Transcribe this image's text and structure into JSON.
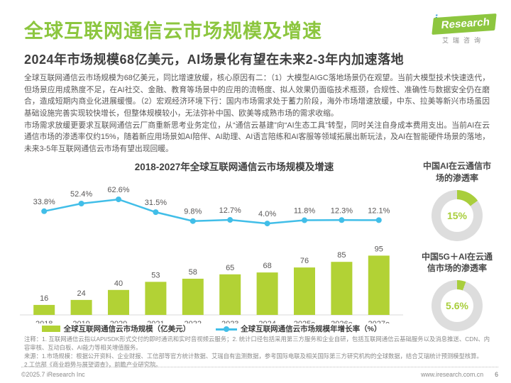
{
  "header": {
    "title": "全球互联网通信云市场规模及增速",
    "logo": {
      "i": "i",
      "research": "Research",
      "cn_name": "艾瑞咨询"
    },
    "subtitle": "2024年市场规模68亿美元，AI场景化有望在未来2-3年内加速落地"
  },
  "paragraphs": {
    "p1": "全球互联网通信云市场规模为68亿美元，同比增速放缓，核心原因有二：（1）大模型AIGC落地场景仍在观望。当前大模型技术快速迭代，但场景应用成熟度不足，在AI社交、金融、教育等场景中的应用的流畅度、拟人效果仍面临技术瓶颈，合规性、准确性与数据安全仍在磨合，造成短期内商业化进展缓慢。（2）宏观经济环境下行：国内市场需求处于蓄力阶段，海外市场增速放缓，中东、拉美等新兴市场虽因基础设施完善实现较快增长，但整体规模较小，无法弥补中国、欧美等成熟市场的需求收缩。",
    "p2": "市场需求放缓更要求互联网通信云厂商重新思考业务定位，从“通信云基建”向“AI生态工具”转型，同时关注自身成本费用支出。当前AI在云通信市场的渗透率仅约15%，随着新应用场景如AI陪伴、AI助理、AI语言陪练和AI客服等领域拓展出新玩法，及AI在智能硬件场景的落地，未来3-5年互联网通信云市场有望出现回暖。"
  },
  "chart_data": {
    "type": "bar+line",
    "title": "2018-2027年全球互联网通信云市场规模及增速",
    "categories": [
      "2018",
      "2019",
      "2020",
      "2021",
      "2022",
      "2023",
      "2024",
      "2025e",
      "2026e",
      "2027e"
    ],
    "series": [
      {
        "name": "全球互联网通信云市场规模（亿美元）",
        "type": "bar",
        "color": "#B2D235",
        "values": [
          16,
          24,
          40,
          53,
          58,
          65,
          68,
          76,
          85,
          95
        ]
      },
      {
        "name": "全球互联网通信云市场规模年增长率（%）",
        "type": "line",
        "color": "#41BEE8",
        "values": [
          33.8,
          52.4,
          62.6,
          31.5,
          9.8,
          12.7,
          4.0,
          11.8,
          12.3,
          12.1
        ]
      }
    ],
    "legend_position": "bottom",
    "grid": false,
    "value_label_color": "#595757",
    "axis_color": "#d9d9d9"
  },
  "side_charts": [
    {
      "type": "donut",
      "title": "中国AI在云通信市\n场的渗透率",
      "value": 15,
      "label": "15%",
      "color": "#A9CE3C",
      "track_color": "#dddddd"
    },
    {
      "type": "donut",
      "title": "中国5G＋AI在云通\n信市场的渗透率",
      "value": 5.6,
      "label": "5.6%",
      "color": "#A9CE3C",
      "track_color": "#dddddd"
    }
  ],
  "notes": {
    "line1": "注释：1. 互联网通信云指以API/SDK形式交付的即时通讯和实时音视频云服务；2. 统计口径包括采用第三方服务和企业自研，包括互联网通信云基础服务以及消息推送、CDN、内容审核、互动白板、AI能力等相关增值服务。",
    "line2": "来源：1.市场规模：根据公开资料、企业财报、工信部等官方统计数据、艾瑞自有监测数据，参考国际电联及相关国际第三方研究机构的全球数据，结合艾瑞统计预测模型核算。",
    "line3": "2.工信部《商业趋势与展望调查》，前瞻产业研究院。"
  },
  "footer": {
    "copyright": "©2025.7 iResearch Inc",
    "website": "www.iresearch.com.cn",
    "page_number": "6"
  },
  "colors": {
    "brand_green": "#8CC63F",
    "bar_green": "#B2D235",
    "line_blue": "#41BEE8"
  }
}
